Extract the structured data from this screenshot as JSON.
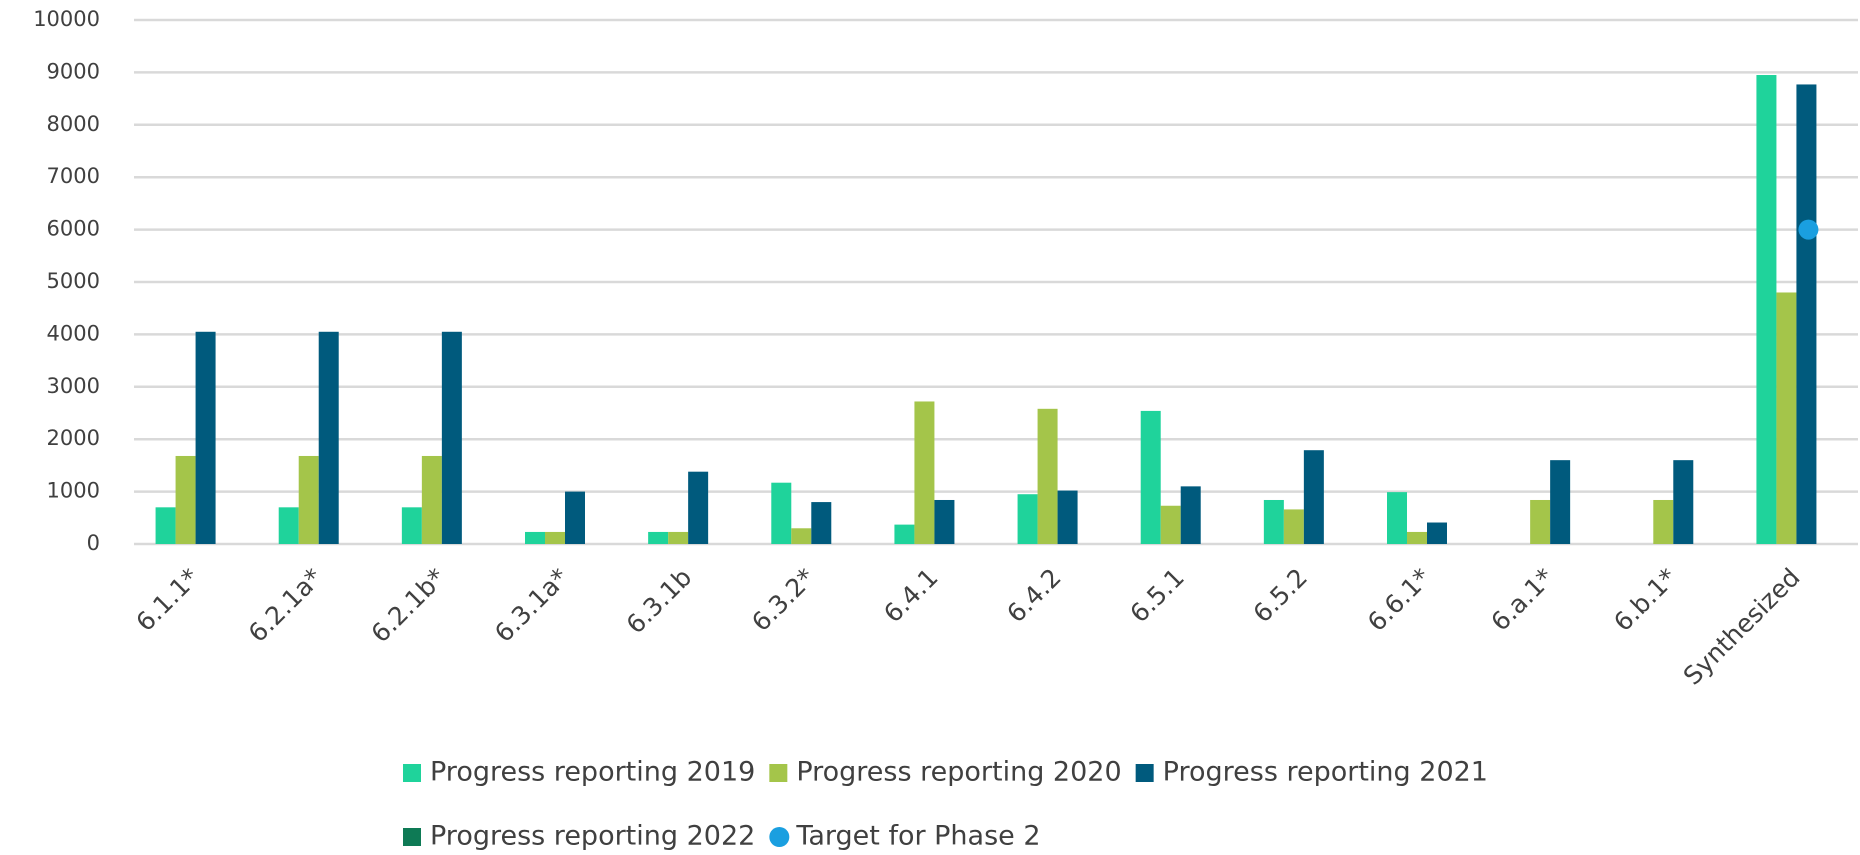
{
  "chart_data": {
    "type": "bar",
    "categories": [
      "6.1.1*",
      "6.2.1a*",
      "6.2.1b*",
      "6.3.1a*",
      "6.3.1b",
      "6.3.2*",
      "6.4.1",
      "6.4.2",
      "6.5.1",
      "6.5.2",
      "6.6.1*",
      "6.a.1*",
      "6.b.1*",
      "Synthesized"
    ],
    "series": [
      {
        "name": "Progress reporting 2019",
        "color": "#1fd39b",
        "values": [
          700,
          700,
          700,
          230,
          230,
          1170,
          370,
          950,
          2540,
          840,
          990,
          null,
          null,
          8950
        ]
      },
      {
        "name": "Progress reporting 2020",
        "color": "#a4c54a",
        "values": [
          1680,
          1680,
          1680,
          230,
          230,
          300,
          2720,
          2580,
          730,
          660,
          230,
          840,
          840,
          4800
        ]
      },
      {
        "name": "Progress reporting 2021",
        "color": "#005a7d",
        "values": [
          4050,
          4050,
          4050,
          1000,
          1380,
          800,
          840,
          1020,
          1100,
          1790,
          410,
          1600,
          1600,
          8770
        ]
      },
      {
        "name": "Progress reporting 2022",
        "color": "#0e7a55",
        "values": [
          null,
          null,
          null,
          null,
          null,
          null,
          null,
          null,
          null,
          null,
          null,
          null,
          null,
          null
        ]
      },
      {
        "name": "Target for Phase 2",
        "type": "scatter",
        "color": "#1a9fe0",
        "values": [
          null,
          null,
          null,
          null,
          null,
          null,
          null,
          null,
          null,
          null,
          null,
          null,
          null,
          6000
        ]
      }
    ],
    "ylim": [
      0,
      10000
    ],
    "yticks": [
      0,
      1000,
      2000,
      3000,
      4000,
      5000,
      6000,
      7000,
      8000,
      9000,
      10000
    ],
    "grid": true
  }
}
